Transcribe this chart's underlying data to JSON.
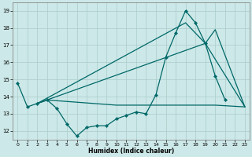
{
  "xlabel": "Humidex (Indice chaleur)",
  "xlim": [
    -0.5,
    23.5
  ],
  "ylim": [
    11.5,
    19.5
  ],
  "yticks": [
    12,
    13,
    14,
    15,
    16,
    17,
    18,
    19
  ],
  "xticks": [
    0,
    1,
    2,
    3,
    4,
    5,
    6,
    7,
    8,
    9,
    10,
    11,
    12,
    13,
    14,
    15,
    16,
    17,
    18,
    19,
    20,
    21,
    22,
    23
  ],
  "background_color": "#cde8e8",
  "grid_color": "#aacccc",
  "line_color": "#006868",
  "line1_x": [
    0,
    1,
    2,
    3,
    4,
    5,
    6,
    7,
    8,
    9,
    10,
    11,
    12,
    13,
    14,
    15,
    16,
    17,
    18,
    19,
    20,
    21
  ],
  "line1_y": [
    14.8,
    13.4,
    13.6,
    13.8,
    13.3,
    12.4,
    11.7,
    12.2,
    12.3,
    12.3,
    12.7,
    12.9,
    13.1,
    13.0,
    14.1,
    16.3,
    17.7,
    19.0,
    18.3,
    17.1,
    15.2,
    13.8
  ],
  "line2_x": [
    2,
    3,
    10,
    20,
    23
  ],
  "line2_y": [
    13.6,
    13.8,
    13.5,
    13.5,
    13.4
  ],
  "line3_x": [
    2,
    17,
    19,
    23
  ],
  "line3_y": [
    13.6,
    18.3,
    17.1,
    13.4
  ],
  "line4_x": [
    2,
    19,
    20,
    23
  ],
  "line4_y": [
    13.6,
    17.1,
    17.9,
    13.4
  ]
}
